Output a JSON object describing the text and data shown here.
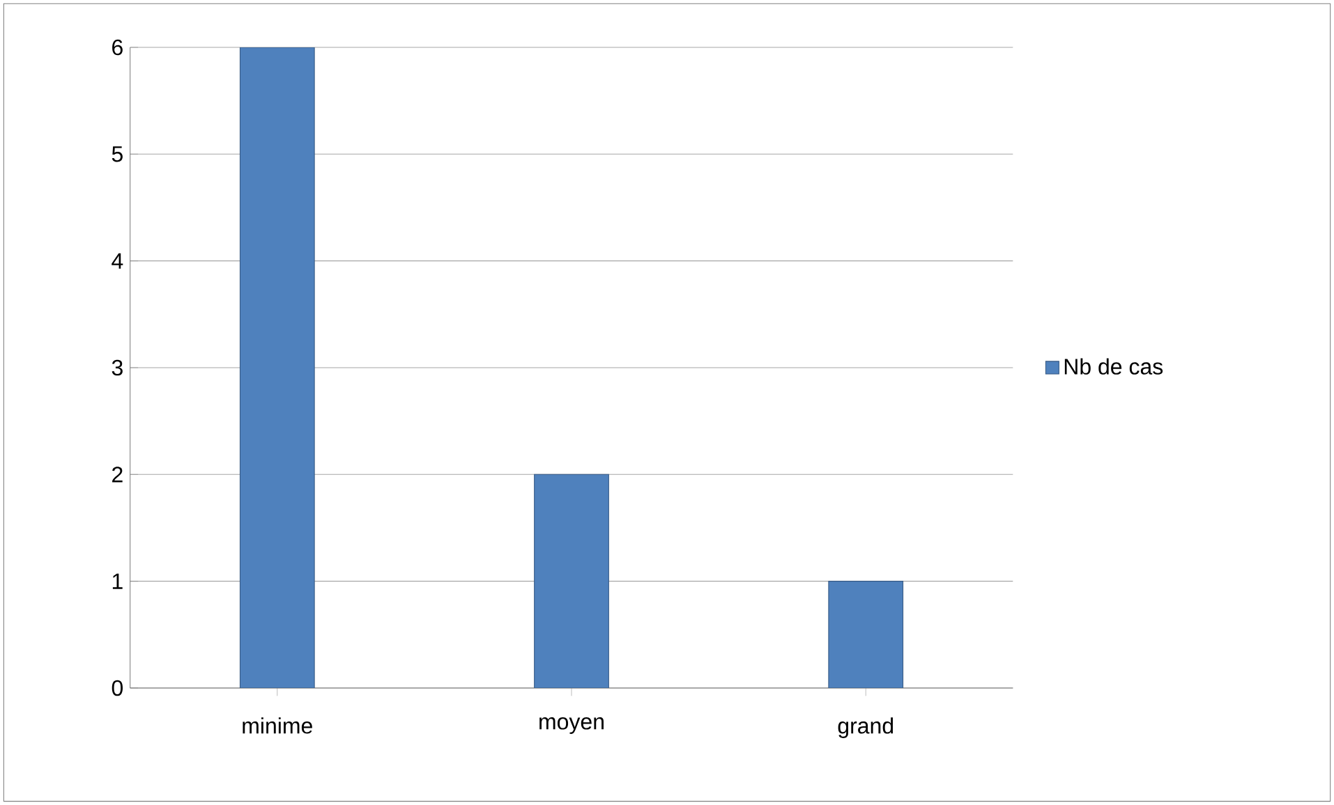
{
  "chart_data": {
    "type": "bar",
    "categories": [
      "minime",
      "moyen",
      "grand"
    ],
    "series": [
      {
        "name": "Nb de cas",
        "color": "#4f81bd",
        "values": [
          6,
          2,
          1
        ]
      }
    ],
    "ylim": [
      0,
      6
    ],
    "yticks": [
      0,
      1,
      2,
      3,
      4,
      5,
      6
    ],
    "grid": "y",
    "legend": "right"
  }
}
